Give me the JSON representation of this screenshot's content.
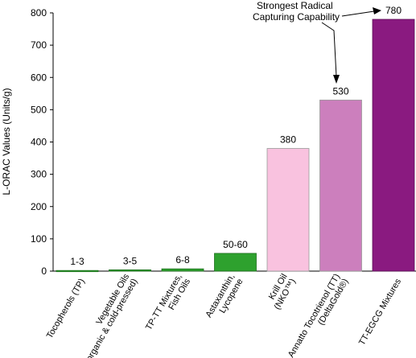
{
  "chart_data": {
    "type": "bar",
    "ylabel": "L-ORAC Values (Units/g)",
    "ylim": [
      0,
      800
    ],
    "yticks": [
      0,
      100,
      200,
      300,
      400,
      500,
      600,
      700,
      800
    ],
    "grid": false,
    "categories": [
      [
        "Tocopherols (TP)"
      ],
      [
        "Vegetable Oils",
        "(organic & cold-pressed)"
      ],
      [
        "TP-TT Mixtures,",
        "Fish Oils"
      ],
      [
        "Astaxanthin,",
        "Lycopene"
      ],
      [
        "Krill Oil",
        "(NKO™)"
      ],
      [
        "Annatto Tocotrienol (TT)",
        "(DeltaGold®)"
      ],
      [
        "TT-EGCG Mixtures"
      ]
    ],
    "values": [
      2,
      4,
      7,
      55,
      380,
      530,
      780
    ],
    "data_labels": [
      "1-3",
      "3-5",
      "6-8",
      "50-60",
      "380",
      "530",
      "780"
    ],
    "bar_colors": [
      "#2ea12e",
      "#2ea12e",
      "#2ea12e",
      "#2ea12e",
      "#f9c2df",
      "#cc7fbd",
      "#8a1a80"
    ],
    "bar_edge_colors": [
      "#1c6e1c",
      "#1c6e1c",
      "#1c6e1c",
      "#1c6e1c",
      "#999999",
      "#999999",
      "#5c0f55"
    ],
    "annotation": {
      "lines": [
        "Strongest Radical",
        "Capturing Capability"
      ],
      "points_to": [
        5,
        6
      ]
    }
  }
}
